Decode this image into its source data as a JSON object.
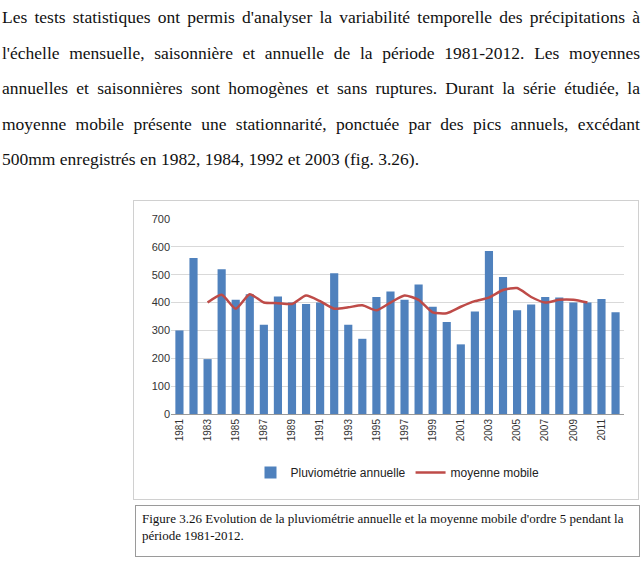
{
  "text": "Les tests statistiques ont permis d'analyser la variabilité temporelle des précipitations à l'échelle mensuelle, saisonnière et annuelle de la période 1981-2012. Les moyennes annuelles et saisonnières sont homogènes et sans ruptures. Durant la série étudiée, la moyenne mobile présente une stationnarité, ponctuée par des pics annuels, excédant 500mm enregistrés en 1982, 1984, 1992 et 2003 (fig. 3.26).",
  "chart_data": {
    "type": "bar",
    "categories": [
      "1981",
      null,
      "1983",
      null,
      "1985",
      null,
      "1987",
      null,
      "1989",
      null,
      "1991",
      null,
      "1993",
      null,
      "1995",
      null,
      "1997",
      null,
      "1999",
      null,
      "2001",
      null,
      "2003",
      null,
      "2005",
      null,
      "2007",
      null,
      "2009",
      null,
      "2011",
      null
    ],
    "series": [
      {
        "name": "Pluviométrie annuelle",
        "type": "bar",
        "color": "#4f81bd",
        "values": [
          300,
          560,
          197,
          520,
          410,
          430,
          320,
          422,
          400,
          395,
          400,
          505,
          320,
          270,
          420,
          440,
          410,
          465,
          385,
          330,
          250,
          368,
          585,
          492,
          372,
          393,
          420,
          418,
          400,
          400,
          413,
          365
        ]
      },
      {
        "name": "moyenne mobile",
        "type": "line",
        "color": "#be4b48",
        "values": [
          null,
          null,
          400,
          428,
          378,
          430,
          400,
          398,
          395,
          425,
          405,
          378,
          383,
          390,
          372,
          400,
          425,
          410,
          365,
          362,
          385,
          405,
          418,
          445,
          452,
          420,
          400,
          410,
          410,
          400,
          null,
          null
        ]
      }
    ],
    "ylim": [
      0,
      700
    ],
    "yticks": [
      0,
      100,
      200,
      300,
      400,
      500,
      600,
      700
    ],
    "grid": true,
    "legend": "bottom"
  },
  "caption": "Figure 3.26 Evolution de la pluviométrie annuelle et la moyenne mobile d'ordre 5  pendant la période 1981-2012."
}
